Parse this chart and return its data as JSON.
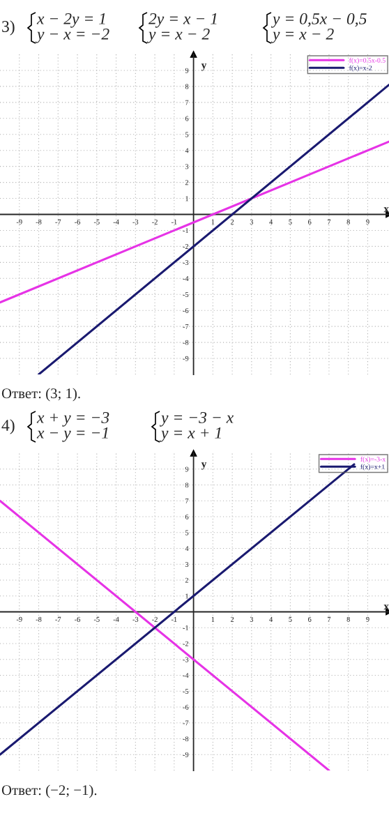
{
  "chart_data": [
    {
      "type": "line",
      "title": "3)",
      "xlabel": "x",
      "ylabel": "y",
      "annotations": [
        "x − 2y = 1",
        "y − x = −2",
        "2y = x − 1",
        "y = x − 2",
        "y = 0,5x − 0,5",
        "y = x − 2",
        "Ответ: (3; 1)."
      ],
      "series": [
        {
          "name": "f(x)=0.5x-0.5",
          "color": "#e633e6",
          "x": [
            -10,
            10.1
          ],
          "values": [
            -5.5,
            4.55
          ]
        },
        {
          "name": "f(x)=x-2",
          "color": "#1a1a70",
          "x": [
            -8,
            10.1
          ],
          "values": [
            -10,
            8.1
          ]
        }
      ],
      "xlim": [
        -10,
        10.1
      ],
      "ylim": [
        -10,
        10
      ],
      "xticks": [
        -9,
        -8,
        -7,
        -6,
        -5,
        -4,
        -3,
        -2,
        -1,
        1,
        2,
        3,
        4,
        5,
        6,
        7,
        8,
        9
      ],
      "yticks": [
        -9,
        -8,
        -7,
        -6,
        -5,
        -4,
        -3,
        -2,
        -1,
        1,
        2,
        3,
        4,
        5,
        6,
        7,
        8,
        9
      ],
      "grid": true,
      "legend": "top right",
      "line_style": "solid",
      "marker": "none"
    },
    {
      "type": "line",
      "title": "4)",
      "xlabel": "x",
      "ylabel": "y",
      "annotations": [
        "x + y = −3",
        "x − y = −1",
        "y = −3 − x",
        "y = x + 1",
        "Ответ: (−2; −1)."
      ],
      "series": [
        {
          "name": "f(x)=-3-x",
          "color": "#e633e6",
          "x": [
            -10,
            7
          ],
          "values": [
            7,
            -10
          ]
        },
        {
          "name": "f(x)=x+1",
          "color": "#1a1a70",
          "x": [
            -10,
            8.3
          ],
          "values": [
            -9,
            9.3
          ]
        }
      ],
      "xlim": [
        -10,
        10.1
      ],
      "ylim": [
        -10,
        10
      ],
      "xticks": [
        -9,
        -8,
        -7,
        -6,
        -5,
        -4,
        -3,
        -2,
        -1,
        1,
        2,
        3,
        4,
        5,
        6,
        7,
        8,
        9
      ],
      "yticks": [
        -9,
        -8,
        -7,
        -6,
        -5,
        -4,
        -3,
        -2,
        -1,
        1,
        2,
        3,
        4,
        5,
        6,
        7,
        8,
        9
      ],
      "grid": true,
      "legend": "top right",
      "line_style": "solid",
      "marker": "none"
    }
  ]
}
